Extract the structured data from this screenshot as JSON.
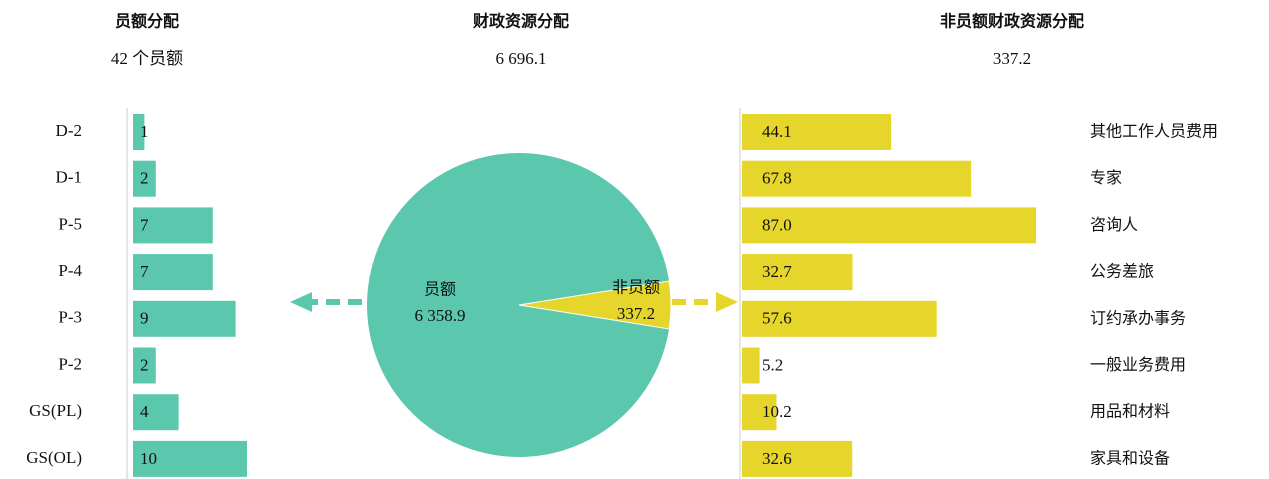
{
  "chart_data": [
    {
      "type": "bar",
      "orientation": "horizontal",
      "title": "员额分配",
      "subtitle": "42 个员额",
      "categories": [
        "D-2",
        "D-1",
        "P-5",
        "P-4",
        "P-3",
        "P-2",
        "GS(PL)",
        "GS(OL)"
      ],
      "values": [
        1,
        2,
        7,
        7,
        9,
        2,
        4,
        10
      ],
      "color": "#5bc8ae"
    },
    {
      "type": "pie",
      "title": "财政资源分配",
      "subtitle": "6 696.1",
      "categories": [
        "员额",
        "非员额"
      ],
      "values": [
        6358.9,
        337.2
      ],
      "value_labels": [
        "6 358.9",
        "337.2"
      ],
      "colors": [
        "#5bc8ae",
        "#e6d52a"
      ]
    },
    {
      "type": "bar",
      "orientation": "horizontal",
      "title": "非员额财政资源分配",
      "subtitle": "337.2",
      "categories": [
        "其他工作人员费用",
        "专家",
        "咨询人",
        "公务差旅",
        "订约承办事务",
        "一般业务费用",
        "用品和材料",
        "家具和设备"
      ],
      "values": [
        44.1,
        67.8,
        87.0,
        32.7,
        57.6,
        5.2,
        10.2,
        32.6
      ],
      "value_labels": [
        "44.1",
        "67.8",
        "87.0",
        "32.7",
        "57.6",
        "5.2",
        "10.2",
        "32.6"
      ],
      "color": "#e6d52a"
    }
  ]
}
